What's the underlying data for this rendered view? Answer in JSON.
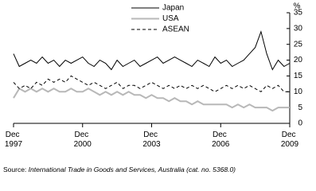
{
  "chart_data": {
    "type": "line",
    "y_label": "%",
    "x": [
      "1997-12",
      "1998-03",
      "1998-06",
      "1998-09",
      "1998-12",
      "1999-03",
      "1999-06",
      "1999-09",
      "1999-12",
      "2000-03",
      "2000-06",
      "2000-09",
      "2000-12",
      "2001-03",
      "2001-06",
      "2001-09",
      "2001-12",
      "2002-03",
      "2002-06",
      "2002-09",
      "2002-12",
      "2003-03",
      "2003-06",
      "2003-09",
      "2003-12",
      "2004-03",
      "2004-06",
      "2004-09",
      "2004-12",
      "2005-03",
      "2005-06",
      "2005-09",
      "2005-12",
      "2006-03",
      "2006-06",
      "2006-09",
      "2006-12",
      "2007-03",
      "2007-06",
      "2007-09",
      "2007-12",
      "2008-03",
      "2008-06",
      "2008-09",
      "2008-12",
      "2009-03",
      "2009-06",
      "2009-09",
      "2009-12"
    ],
    "series": [
      {
        "name": "Japan",
        "color": "#000000",
        "width": 1,
        "dashed": false,
        "values": [
          22,
          18,
          19,
          20,
          19,
          21,
          19,
          20,
          18,
          20,
          19,
          20,
          21,
          19,
          18,
          20,
          19,
          17,
          20,
          18,
          19,
          20,
          18,
          19,
          20,
          21,
          19,
          20,
          21,
          20,
          19,
          18,
          20,
          19,
          18,
          21,
          19,
          20,
          18,
          19,
          20,
          22,
          24,
          29,
          22,
          17,
          20,
          18,
          19
        ]
      },
      {
        "name": "USA",
        "color": "#b8b8b8",
        "width": 2,
        "dashed": false,
        "values": [
          8,
          11,
          10,
          11,
          10,
          11,
          10,
          11,
          10,
          10,
          11,
          10,
          10,
          11,
          10,
          9,
          10,
          9,
          10,
          9,
          10,
          9,
          9,
          8,
          9,
          8,
          8,
          7,
          8,
          7,
          7,
          6,
          7,
          6,
          6,
          6,
          6,
          6,
          5,
          6,
          5,
          6,
          5,
          5,
          5,
          4,
          5,
          5,
          5
        ]
      },
      {
        "name": "ASEAN",
        "color": "#000000",
        "width": 1,
        "dashed": true,
        "values": [
          13,
          11,
          12,
          11,
          13,
          12,
          14,
          13,
          14,
          13,
          15,
          14,
          13,
          12,
          13,
          12,
          11,
          12,
          13,
          11,
          12,
          12,
          11,
          12,
          13,
          12,
          11,
          12,
          11,
          12,
          11,
          12,
          11,
          12,
          11,
          10,
          11,
          12,
          11,
          12,
          11,
          12,
          11,
          10,
          12,
          11,
          12,
          10,
          10
        ]
      }
    ],
    "xticks": [
      {
        "value": "1997-12",
        "label": "Dec 1997"
      },
      {
        "value": "2000-12",
        "label": "Dec 2000"
      },
      {
        "value": "2003-12",
        "label": "Dec 2003"
      },
      {
        "value": "2006-12",
        "label": "Dec 2006"
      },
      {
        "value": "2009-12",
        "label": "Dec 2009"
      }
    ],
    "ylim": [
      0,
      35
    ],
    "yticks": [
      0,
      5,
      10,
      15,
      20,
      25,
      30,
      35
    ],
    "y_axis_side": "right",
    "grid": false,
    "source_label": "Source:",
    "source": "International Trade in Goods and Services, Australia (cat. no. 5368.0)"
  }
}
